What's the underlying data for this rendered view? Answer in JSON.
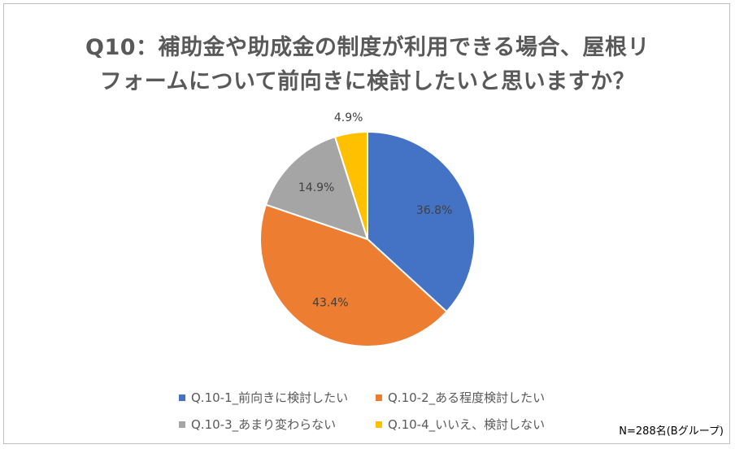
{
  "title_line1": "Q10：補助金や助成金の制度が利用できる場合、屋根リ",
  "title_line2": "フォームについて前向きに検討したいと思いますか？",
  "chart_data": {
    "type": "pie",
    "title": "Q10：補助金や助成金の制度が利用できる場合、屋根リフォームについて前向きに検討したいと思いますか？",
    "slices": [
      {
        "name": "Q.10-1_前向きに検討したい",
        "value": 36.8,
        "label": "36.8%",
        "color": "#4472c4"
      },
      {
        "name": "Q.10-2_ある程度検討したい",
        "value": 43.4,
        "label": "43.4%",
        "color": "#ed7d31"
      },
      {
        "name": "Q.10-3_あまり変わらない",
        "value": 14.9,
        "label": "14.9%",
        "color": "#a5a5a5"
      },
      {
        "name": "Q.10-4_いいえ、検討しない",
        "value": 4.9,
        "label": "4.9%",
        "color": "#ffc000"
      }
    ],
    "legend_position": "bottom"
  },
  "note": "N=288名(Bグループ)"
}
